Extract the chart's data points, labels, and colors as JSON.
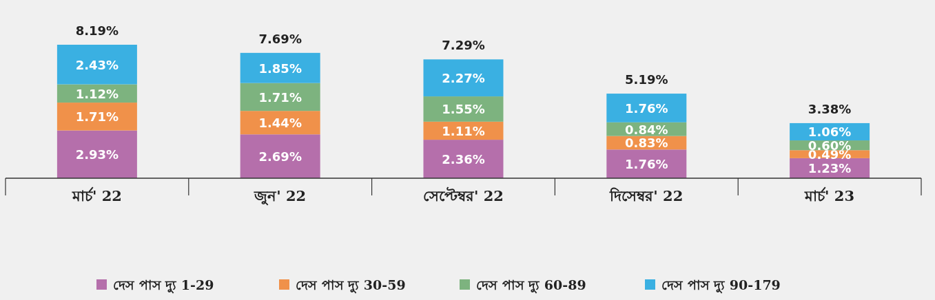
{
  "chart_data": {
    "type": "bar",
    "stacked": true,
    "legend": "bottom",
    "categories": [
      "মার্চ' 22",
      "জুন' 22",
      "সেপ্টেম্বর' 22",
      "দিসেম্বর' 22",
      "মার্চ' 23"
    ],
    "series": [
      {
        "name": "দেস পাস দ্যু 1-29",
        "color": "#b56fab",
        "values": [
          2.93,
          2.69,
          2.36,
          1.76,
          1.23
        ],
        "value_labels": [
          "2.93%",
          "2.69%",
          "2.36%",
          "1.76%",
          "1.23%"
        ]
      },
      {
        "name": "দেস পাস দ্যু 30-59",
        "color": "#f0914a",
        "values": [
          1.71,
          1.44,
          1.11,
          0.83,
          0.49
        ],
        "value_labels": [
          "1.71%",
          "1.44%",
          "1.11%",
          "0.83%",
          "0.49%"
        ]
      },
      {
        "name": "দেস পাস দ্যু 60-89",
        "color": "#7db37f",
        "values": [
          1.12,
          1.71,
          1.55,
          0.84,
          0.6
        ],
        "value_labels": [
          "1.12%",
          "1.71%",
          "1.55%",
          "0.84%",
          "0.60%"
        ]
      },
      {
        "name": "দেস পাস দ্যু 90-179",
        "color": "#3ab0e2",
        "values": [
          2.43,
          1.85,
          2.27,
          1.76,
          1.06
        ],
        "value_labels": [
          "2.43%",
          "1.85%",
          "2.27%",
          "1.76%",
          "1.06%"
        ]
      }
    ],
    "totals": [
      "8.19%",
      "7.69%",
      "7.29%",
      "5.19%",
      "3.38%"
    ]
  }
}
